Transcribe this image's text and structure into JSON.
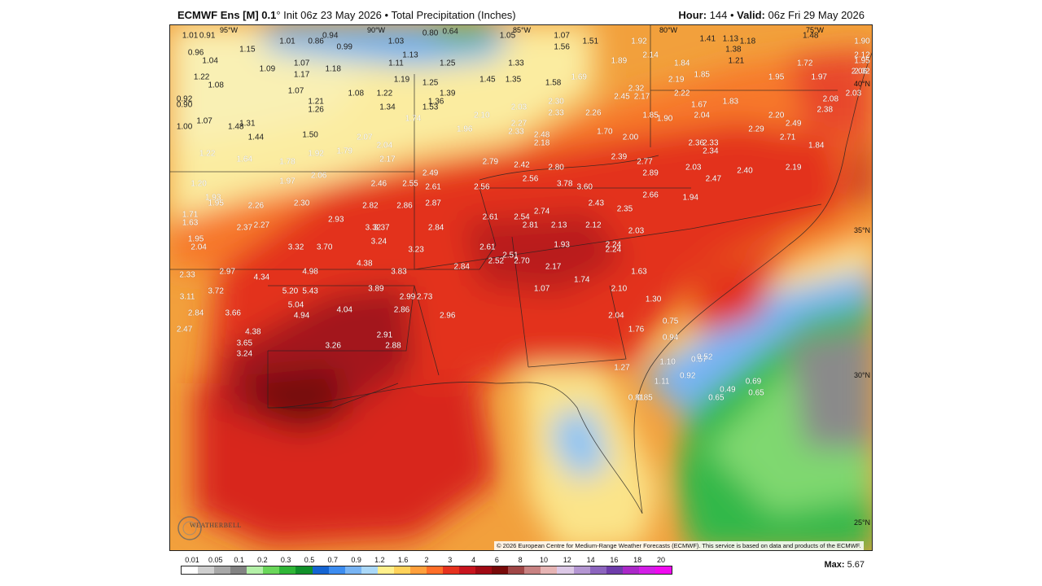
{
  "header": {
    "model": "ECMWF Ens [M] 0.1",
    "degree_symbol": "°",
    "init_text": "Init 06z 23 May 2026",
    "bullet": "•",
    "product": "Total Precipitation (Inches)",
    "hour_label": "Hour:",
    "hour_value": "144",
    "valid_label": "Valid:",
    "valid_value": "06z Fri 29 May 2026"
  },
  "grid_labels": {
    "lon": [
      "95°W",
      "90°W",
      "85°W",
      "80°W",
      "75°W"
    ],
    "lat": [
      "40°N",
      "35°N",
      "30°N",
      "25°N"
    ]
  },
  "logo": {
    "text": "WEATHERBELL"
  },
  "copyright": "© 2026 European Centre for Medium-Range Weather Forecasts (ECMWF). This service is based on data and products of the ECMWF.",
  "colorbar": {
    "labels": [
      "0.01",
      "0.05",
      "0.1",
      "0.2",
      "0.3",
      "0.5",
      "0.7",
      "0.9",
      "1.2",
      "1.6",
      "2",
      "3",
      "4",
      "6",
      "8",
      "10",
      "12",
      "14",
      "16",
      "18",
      "20"
    ],
    "colors": [
      "#ffffff",
      "#cfcfcf",
      "#a8a8a8",
      "#838383",
      "#b4f0a8",
      "#6ad65a",
      "#2fb637",
      "#10902a",
      "#1464d2",
      "#3c8cf0",
      "#78b4f4",
      "#aad8f8",
      "#fff08c",
      "#ffd25a",
      "#ffa03c",
      "#ff6e28",
      "#e6321e",
      "#c8141e",
      "#a00a14",
      "#780a0a",
      "#a04646",
      "#c88282",
      "#e6b4b4",
      "#dcc8e6",
      "#b496d2",
      "#8c64be",
      "#6e3caa",
      "#aa28c8",
      "#d21ee6",
      "#f00af0"
    ]
  },
  "max": {
    "label": "Max:",
    "value": "5.67"
  },
  "values": [
    {
      "t": "1.01",
      "lon": -97.8,
      "lat": 42.8
    },
    {
      "t": "0.91",
      "lon": -97.2,
      "lat": 42.8
    },
    {
      "t": "1.01",
      "lon": -94.4,
      "lat": 42.6
    },
    {
      "t": "0.94",
      "lon": -92.9,
      "lat": 42.8
    },
    {
      "t": "0.80",
      "lon": -89.4,
      "lat": 42.9
    },
    {
      "t": "0.64",
      "lon": -88.7,
      "lat": 43.0
    },
    {
      "t": "1.05",
      "lon": -86.7,
      "lat": 42.8
    },
    {
      "t": "1.07",
      "lon": -84.8,
      "lat": 42.8
    },
    {
      "t": "0.86",
      "lon": -93.4,
      "lat": 42.6
    },
    {
      "t": "1.03",
      "lon": -90.6,
      "lat": 42.6
    },
    {
      "t": "1.51",
      "lon": -83.8,
      "lat": 42.6
    },
    {
      "t": "1.92",
      "lon": -82.1,
      "lat": 42.6
    },
    {
      "t": "1.41",
      "lon": -79.7,
      "lat": 42.7
    },
    {
      "t": "1.13",
      "lon": -78.9,
      "lat": 42.7
    },
    {
      "t": "1.18",
      "lon": -78.3,
      "lat": 42.6
    },
    {
      "t": "1.48",
      "lon": -76.1,
      "lat": 42.8
    },
    {
      "t": "1.90",
      "lon": -73.8,
      "lat": 42.6
    },
    {
      "t": "0.99",
      "lon": -92.4,
      "lat": 42.4
    },
    {
      "t": "1.15",
      "lon": -95.8,
      "lat": 42.3
    },
    {
      "t": "1.56",
      "lon": -84.8,
      "lat": 42.4
    },
    {
      "t": "1.38",
      "lon": -78.8,
      "lat": 42.3
    },
    {
      "t": "0.96",
      "lon": -97.6,
      "lat": 42.2
    },
    {
      "t": "1.04",
      "lon": -97.1,
      "lat": 41.9
    },
    {
      "t": "1.13",
      "lon": -90.1,
      "lat": 42.1
    },
    {
      "t": "2.14",
      "lon": -81.7,
      "lat": 42.1
    },
    {
      "t": "1.89",
      "lon": -82.8,
      "lat": 41.9
    },
    {
      "t": "1.21",
      "lon": -78.7,
      "lat": 41.9
    },
    {
      "t": "1.72",
      "lon": -76.3,
      "lat": 41.8
    },
    {
      "t": "2.12",
      "lon": -73.9,
      "lat": 42.1
    },
    {
      "t": "1.95",
      "lon": -73.6,
      "lat": 41.9
    },
    {
      "t": "1.07",
      "lon": -93.9,
      "lat": 41.8
    },
    {
      "t": "1.11",
      "lon": -90.6,
      "lat": 41.8
    },
    {
      "t": "1.25",
      "lon": -88.8,
      "lat": 41.8
    },
    {
      "t": "1.33",
      "lon": -86.4,
      "lat": 41.8
    },
    {
      "t": "1.84",
      "lon": -80.6,
      "lat": 41.8
    },
    {
      "t": "1.09",
      "lon": -95.1,
      "lat": 41.6
    },
    {
      "t": "1.18",
      "lon": -92.8,
      "lat": 41.6
    },
    {
      "t": "2.06",
      "lon": -74.4,
      "lat": 41.5
    },
    {
      "t": "2.02",
      "lon": -73.6,
      "lat": 41.5
    },
    {
      "t": "1.17",
      "lon": -93.9,
      "lat": 41.4
    },
    {
      "t": "1.69",
      "lon": -84.2,
      "lat": 41.3
    },
    {
      "t": "1.85",
      "lon": -79.9,
      "lat": 41.4
    },
    {
      "t": "1.95",
      "lon": -77.3,
      "lat": 41.3
    },
    {
      "t": "1.97",
      "lon": -75.8,
      "lat": 41.3
    },
    {
      "t": "1.22",
      "lon": -97.4,
      "lat": 41.3
    },
    {
      "t": "1.19",
      "lon": -90.4,
      "lat": 41.2
    },
    {
      "t": "1.25",
      "lon": -89.4,
      "lat": 41.1
    },
    {
      "t": "1.45",
      "lon": -87.4,
      "lat": 41.2
    },
    {
      "t": "1.35",
      "lon": -86.5,
      "lat": 41.2
    },
    {
      "t": "2.19",
      "lon": -80.8,
      "lat": 41.2
    },
    {
      "t": "1.58",
      "lon": -85.1,
      "lat": 41.1
    },
    {
      "t": "1.08",
      "lon": -96.9,
      "lat": 41.0
    },
    {
      "t": "2.32",
      "lon": -82.2,
      "lat": 40.9
    },
    {
      "t": "1.07",
      "lon": -94.1,
      "lat": 40.8
    },
    {
      "t": "1.08",
      "lon": -92.0,
      "lat": 40.7
    },
    {
      "t": "1.22",
      "lon": -91.0,
      "lat": 40.7
    },
    {
      "t": "1.39",
      "lon": -88.8,
      "lat": 40.7
    },
    {
      "t": "2.22",
      "lon": -80.6,
      "lat": 40.7
    },
    {
      "t": "2.03",
      "lon": -74.6,
      "lat": 40.7
    },
    {
      "t": "2.45",
      "lon": -82.7,
      "lat": 40.6
    },
    {
      "t": "2.17",
      "lon": -82.0,
      "lat": 40.6
    },
    {
      "t": "2.08",
      "lon": -75.4,
      "lat": 40.5
    },
    {
      "t": "0.92",
      "lon": -98.0,
      "lat": 40.5
    },
    {
      "t": "1.21",
      "lon": -93.4,
      "lat": 40.4
    },
    {
      "t": "1.36",
      "lon": -89.2,
      "lat": 40.4
    },
    {
      "t": "2.30",
      "lon": -85.0,
      "lat": 40.4
    },
    {
      "t": "1.83",
      "lon": -78.9,
      "lat": 40.4
    },
    {
      "t": "1.67",
      "lon": -80.0,
      "lat": 40.3
    },
    {
      "t": "0.90",
      "lon": -98.0,
      "lat": 40.3
    },
    {
      "t": "1.26",
      "lon": -93.4,
      "lat": 40.1
    },
    {
      "t": "1.34",
      "lon": -90.9,
      "lat": 40.2
    },
    {
      "t": "1.53",
      "lon": -89.4,
      "lat": 40.2
    },
    {
      "t": "2.03",
      "lon": -86.3,
      "lat": 40.2
    },
    {
      "t": "2.33",
      "lon": -85.0,
      "lat": 40.0
    },
    {
      "t": "2.26",
      "lon": -83.7,
      "lat": 40.0
    },
    {
      "t": "2.38",
      "lon": -75.6,
      "lat": 40.1
    },
    {
      "t": "2.10",
      "lon": -87.6,
      "lat": 39.9
    },
    {
      "t": "1.85",
      "lon": -81.7,
      "lat": 39.9
    },
    {
      "t": "1.90",
      "lon": -81.2,
      "lat": 39.8
    },
    {
      "t": "2.04",
      "lon": -79.9,
      "lat": 39.9
    },
    {
      "t": "2.20",
      "lon": -77.3,
      "lat": 39.9
    },
    {
      "t": "1.74",
      "lon": -90.0,
      "lat": 39.8
    },
    {
      "t": "1.07",
      "lon": -97.3,
      "lat": 39.7
    },
    {
      "t": "1.31",
      "lon": -95.8,
      "lat": 39.6
    },
    {
      "t": "1.48",
      "lon": -96.2,
      "lat": 39.5
    },
    {
      "t": "2.49",
      "lon": -76.7,
      "lat": 39.6
    },
    {
      "t": "1.00",
      "lon": -98.0,
      "lat": 39.5
    },
    {
      "t": "2.27",
      "lon": -86.3,
      "lat": 39.6
    },
    {
      "t": "1.96",
      "lon": -88.2,
      "lat": 39.4
    },
    {
      "t": "2.33",
      "lon": -86.4,
      "lat": 39.3
    },
    {
      "t": "2.29",
      "lon": -78.0,
      "lat": 39.4
    },
    {
      "t": "2.48",
      "lon": -85.5,
      "lat": 39.2
    },
    {
      "t": "1.70",
      "lon": -83.3,
      "lat": 39.3
    },
    {
      "t": "2.00",
      "lon": -82.4,
      "lat": 39.1
    },
    {
      "t": "2.71",
      "lon": -76.9,
      "lat": 39.1
    },
    {
      "t": "1.44",
      "lon": -95.5,
      "lat": 39.1
    },
    {
      "t": "1.50",
      "lon": -93.6,
      "lat": 39.2
    },
    {
      "t": "2.07",
      "lon": -91.7,
      "lat": 39.1
    },
    {
      "t": "2.18",
      "lon": -85.5,
      "lat": 38.9
    },
    {
      "t": "2.36",
      "lon": -80.1,
      "lat": 38.9
    },
    {
      "t": "2.33",
      "lon": -79.6,
      "lat": 38.9
    },
    {
      "t": "1.84",
      "lon": -75.9,
      "lat": 38.8
    },
    {
      "t": "2.04",
      "lon": -91.0,
      "lat": 38.8
    },
    {
      "t": "2.34",
      "lon": -79.6,
      "lat": 38.6
    },
    {
      "t": "1.22",
      "lon": -97.2,
      "lat": 38.5
    },
    {
      "t": "1.92",
      "lon": -93.4,
      "lat": 38.5
    },
    {
      "t": "1.79",
      "lon": -92.4,
      "lat": 38.6
    },
    {
      "t": "2.39",
      "lon": -82.8,
      "lat": 38.4
    },
    {
      "t": "1.64",
      "lon": -95.9,
      "lat": 38.3
    },
    {
      "t": "1.78",
      "lon": -94.4,
      "lat": 38.2
    },
    {
      "t": "2.17",
      "lon": -90.9,
      "lat": 38.3
    },
    {
      "t": "2.79",
      "lon": -87.3,
      "lat": 38.2
    },
    {
      "t": "2.42",
      "lon": -86.2,
      "lat": 38.1
    },
    {
      "t": "2.77",
      "lon": -81.9,
      "lat": 38.2
    },
    {
      "t": "2.03",
      "lon": -80.2,
      "lat": 38.0
    },
    {
      "t": "2.40",
      "lon": -78.4,
      "lat": 37.9
    },
    {
      "t": "2.19",
      "lon": -76.7,
      "lat": 38.0
    },
    {
      "t": "2.80",
      "lon": -85.0,
      "lat": 38.0
    },
    {
      "t": "2.49",
      "lon": -89.4,
      "lat": 37.8
    },
    {
      "t": "2.89",
      "lon": -81.7,
      "lat": 37.8
    },
    {
      "t": "2.06",
      "lon": -93.3,
      "lat": 37.7
    },
    {
      "t": "2.56",
      "lon": -85.9,
      "lat": 37.6
    },
    {
      "t": "2.47",
      "lon": -79.5,
      "lat": 37.6
    },
    {
      "t": "1.20",
      "lon": -97.5,
      "lat": 37.4
    },
    {
      "t": "1.97",
      "lon": -94.4,
      "lat": 37.5
    },
    {
      "t": "2.46",
      "lon": -91.2,
      "lat": 37.4
    },
    {
      "t": "2.55",
      "lon": -90.1,
      "lat": 37.4
    },
    {
      "t": "2.61",
      "lon": -89.3,
      "lat": 37.3
    },
    {
      "t": "2.56",
      "lon": -87.6,
      "lat": 37.3
    },
    {
      "t": "3.78",
      "lon": -84.7,
      "lat": 37.4
    },
    {
      "t": "3.60",
      "lon": -84.0,
      "lat": 37.3
    },
    {
      "t": "1.93",
      "lon": -97.0,
      "lat": 36.9
    },
    {
      "t": "2.66",
      "lon": -81.7,
      "lat": 37.0
    },
    {
      "t": "1.94",
      "lon": -80.3,
      "lat": 36.9
    },
    {
      "t": "1.95",
      "lon": -96.9,
      "lat": 36.7
    },
    {
      "t": "2.26",
      "lon": -95.5,
      "lat": 36.6
    },
    {
      "t": "2.30",
      "lon": -93.9,
      "lat": 36.7
    },
    {
      "t": "2.82",
      "lon": -91.5,
      "lat": 36.6
    },
    {
      "t": "2.86",
      "lon": -90.3,
      "lat": 36.6
    },
    {
      "t": "2.87",
      "lon": -89.3,
      "lat": 36.7
    },
    {
      "t": "2.43",
      "lon": -83.6,
      "lat": 36.7
    },
    {
      "t": "2.35",
      "lon": -82.6,
      "lat": 36.5
    },
    {
      "t": "2.74",
      "lon": -85.5,
      "lat": 36.4
    },
    {
      "t": "1.71",
      "lon": -97.8,
      "lat": 36.3
    },
    {
      "t": "2.61",
      "lon": -87.3,
      "lat": 36.2
    },
    {
      "t": "2.54",
      "lon": -86.2,
      "lat": 36.2
    },
    {
      "t": "1.63",
      "lon": -97.8,
      "lat": 36.0
    },
    {
      "t": "2.93",
      "lon": -92.7,
      "lat": 36.1
    },
    {
      "t": "2.81",
      "lon": -85.9,
      "lat": 35.9
    },
    {
      "t": "2.13",
      "lon": -84.9,
      "lat": 35.9
    },
    {
      "t": "2.12",
      "lon": -83.7,
      "lat": 35.9
    },
    {
      "t": "2.27",
      "lon": -95.3,
      "lat": 35.9
    },
    {
      "t": "2.37",
      "lon": -95.9,
      "lat": 35.8
    },
    {
      "t": "3.32",
      "lon": -91.4,
      "lat": 35.8
    },
    {
      "t": "3.37",
      "lon": -91.1,
      "lat": 35.8
    },
    {
      "t": "2.84",
      "lon": -89.2,
      "lat": 35.8
    },
    {
      "t": "2.03",
      "lon": -82.2,
      "lat": 35.7
    },
    {
      "t": "1.95",
      "lon": -97.6,
      "lat": 35.4
    },
    {
      "t": "3.24",
      "lon": -91.2,
      "lat": 35.3
    },
    {
      "t": "1.93",
      "lon": -84.8,
      "lat": 35.2
    },
    {
      "t": "2.24",
      "lon": -83.0,
      "lat": 35.2
    },
    {
      "t": "2.04",
      "lon": -97.5,
      "lat": 35.1
    },
    {
      "t": "3.32",
      "lon": -94.1,
      "lat": 35.1
    },
    {
      "t": "3.70",
      "lon": -93.1,
      "lat": 35.1
    },
    {
      "t": "3.23",
      "lon": -89.9,
      "lat": 35.0
    },
    {
      "t": "2.61",
      "lon": -87.4,
      "lat": 35.1
    },
    {
      "t": "2.24",
      "lon": -83.0,
      "lat": 35.0
    },
    {
      "t": "2.51",
      "lon": -86.6,
      "lat": 34.8
    },
    {
      "t": "2.52",
      "lon": -87.1,
      "lat": 34.6
    },
    {
      "t": "2.70",
      "lon": -86.2,
      "lat": 34.6
    },
    {
      "t": "4.38",
      "lon": -91.7,
      "lat": 34.5
    },
    {
      "t": "2.84",
      "lon": -88.3,
      "lat": 34.4
    },
    {
      "t": "2.17",
      "lon": -85.1,
      "lat": 34.4
    },
    {
      "t": "2.97",
      "lon": -96.5,
      "lat": 34.2
    },
    {
      "t": "4.98",
      "lon": -93.6,
      "lat": 34.2
    },
    {
      "t": "3.83",
      "lon": -90.5,
      "lat": 34.2
    },
    {
      "t": "1.63",
      "lon": -82.1,
      "lat": 34.2
    },
    {
      "t": "2.33",
      "lon": -97.9,
      "lat": 34.1
    },
    {
      "t": "4.34",
      "lon": -95.3,
      "lat": 34.0
    },
    {
      "t": "1.74",
      "lon": -84.1,
      "lat": 33.9
    },
    {
      "t": "2.10",
      "lon": -82.8,
      "lat": 33.6
    },
    {
      "t": "1.07",
      "lon": -85.5,
      "lat": 33.6
    },
    {
      "t": "3.89",
      "lon": -91.3,
      "lat": 33.6
    },
    {
      "t": "3.72",
      "lon": -96.9,
      "lat": 33.5
    },
    {
      "t": "5.20",
      "lon": -94.3,
      "lat": 33.5
    },
    {
      "t": "5.43",
      "lon": -93.6,
      "lat": 33.5
    },
    {
      "t": "3.11",
      "lon": -97.9,
      "lat": 33.3
    },
    {
      "t": "2.99",
      "lon": -90.2,
      "lat": 33.3
    },
    {
      "t": "2.73",
      "lon": -89.6,
      "lat": 33.3
    },
    {
      "t": "1.30",
      "lon": -81.6,
      "lat": 33.2
    },
    {
      "t": "5.04",
      "lon": -94.1,
      "lat": 33.0
    },
    {
      "t": "2.86",
      "lon": -90.4,
      "lat": 32.8
    },
    {
      "t": "2.96",
      "lon": -88.8,
      "lat": 32.6
    },
    {
      "t": "4.04",
      "lon": -92.4,
      "lat": 32.8
    },
    {
      "t": "2.84",
      "lon": -97.6,
      "lat": 32.7
    },
    {
      "t": "3.66",
      "lon": -96.3,
      "lat": 32.7
    },
    {
      "t": "4.94",
      "lon": -93.9,
      "lat": 32.6
    },
    {
      "t": "2.04",
      "lon": -82.9,
      "lat": 32.6
    },
    {
      "t": "0.75",
      "lon": -81.0,
      "lat": 32.4
    },
    {
      "t": "2.47",
      "lon": -98.0,
      "lat": 32.1
    },
    {
      "t": "4.38",
      "lon": -95.6,
      "lat": 32.0
    },
    {
      "t": "2.91",
      "lon": -91.0,
      "lat": 31.9
    },
    {
      "t": "1.76",
      "lon": -82.2,
      "lat": 32.1
    },
    {
      "t": "3.65",
      "lon": -95.9,
      "lat": 31.6
    },
    {
      "t": "3.26",
      "lon": -92.8,
      "lat": 31.5
    },
    {
      "t": "2.88",
      "lon": -90.7,
      "lat": 31.5
    },
    {
      "t": "0.94",
      "lon": -81.0,
      "lat": 31.8
    },
    {
      "t": "3.24",
      "lon": -95.9,
      "lat": 31.2
    },
    {
      "t": "0.57",
      "lon": -80.0,
      "lat": 31.0
    },
    {
      "t": "0.52",
      "lon": -79.8,
      "lat": 31.1
    },
    {
      "t": "1.27",
      "lon": -82.7,
      "lat": 30.7
    },
    {
      "t": "1.10",
      "lon": -81.1,
      "lat": 30.9
    },
    {
      "t": "0.92",
      "lon": -80.4,
      "lat": 30.4
    },
    {
      "t": "1.11",
      "lon": -81.3,
      "lat": 30.2
    },
    {
      "t": "0.49",
      "lon": -79.0,
      "lat": 29.9
    },
    {
      "t": "0.69",
      "lon": -78.1,
      "lat": 30.2
    },
    {
      "t": "0.65",
      "lon": -78.0,
      "lat": 29.8
    },
    {
      "t": "0.65",
      "lon": -79.4,
      "lat": 29.6
    },
    {
      "t": "0.81",
      "lon": -82.2,
      "lat": 29.6
    },
    {
      "t": "0.85",
      "lon": -81.9,
      "lat": 29.6
    }
  ]
}
